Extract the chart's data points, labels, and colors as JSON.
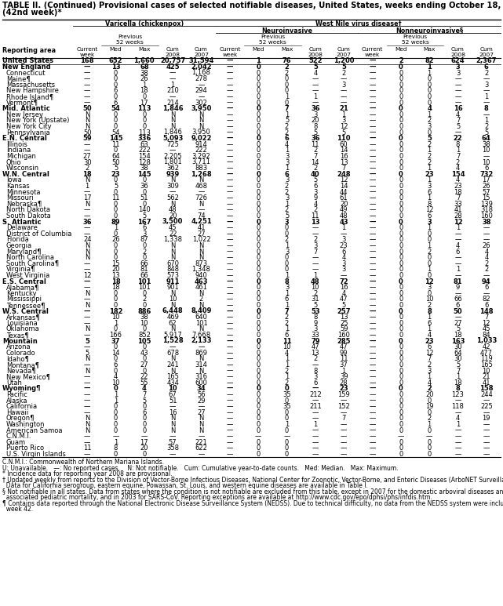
{
  "title_line1": "TABLE II. (Continued) Provisional cases of selected notifiable diseases, United States, weeks ending October 18, 2008, and October 20, 2007",
  "title_line2": "(42nd week)*",
  "col_group1": "Varicella (chickenpox)",
  "col_group2": "West Nile virus disease†",
  "col_group2a": "Neuroinvasive",
  "col_group2b": "Nonneuroinvasive§",
  "footnote1": "C.N.M.I.: Commonwealth of Northern Mariana Islands.",
  "footnote2": "U: Unavailable.   —: No reported cases.    N: Not notifiable.   Cum: Cumulative year-to-date counts.   Med: Median.   Max: Maximum.",
  "footnote3": "* Incidence data for reporting year 2008 are provisional.",
  "footnote4": "† Updated weekly from reports to the Division of Vector-Borne Infectious Diseases, National Center for Zoonotic, Vector-Borne, and Enteric Diseases (ArboNET Surveillance).",
  "footnote4b": "  Data for California serogroup, eastern equine, Powassan, St. Louis, and western equine diseases are available in Table I.",
  "footnote5": "§ Not notifiable in all states. Data from states where the condition is not notifiable are excluded from this table, except in 2007 for the domestic arboviral diseases and influenza-",
  "footnote5b": "  associated pediatric mortality, and in 2003 for SARS-CoV. Reporting exceptions are available at http://www.cdc.gov/epo/dphsi/phs/infdis.htm.",
  "footnote6": "¶ Contains data reported through the National Electronic Disease Surveillance System (NEDSS). Due to technical difficulty, no data from the NEDSS system were included in",
  "footnote6b": "  week 42.",
  "rows": [
    [
      "United States",
      "168",
      "652",
      "1,660",
      "20,757",
      "31,594",
      "—",
      "1",
      "76",
      "522",
      "1,200",
      "—",
      "2",
      "82",
      "624",
      "2,367"
    ],
    [
      "New England",
      "—",
      "13",
      "68",
      "425",
      "2,042",
      "—",
      "0",
      "2",
      "5",
      "5",
      "—",
      "0",
      "1",
      "3",
      "6"
    ],
    [
      "Connecticut",
      "—",
      "0",
      "38",
      "—",
      "1,168",
      "—",
      "0",
      "2",
      "4",
      "2",
      "—",
      "0",
      "1",
      "3",
      "2"
    ],
    [
      "Maine¶",
      "—",
      "0",
      "26",
      "—",
      "278",
      "—",
      "0",
      "0",
      "—",
      "—",
      "—",
      "0",
      "0",
      "—",
      "—"
    ],
    [
      "Massachusetts",
      "—",
      "0",
      "1",
      "1",
      "—",
      "—",
      "0",
      "0",
      "—",
      "3",
      "—",
      "0",
      "0",
      "—",
      "3"
    ],
    [
      "New Hampshire",
      "—",
      "6",
      "18",
      "210",
      "294",
      "—",
      "0",
      "0",
      "—",
      "—",
      "—",
      "0",
      "0",
      "—",
      "—"
    ],
    [
      "Rhode Island¶",
      "—",
      "0",
      "0",
      "—",
      "—",
      "—",
      "0",
      "1",
      "1",
      "—",
      "—",
      "0",
      "0",
      "—",
      "1"
    ],
    [
      "Vermont¶",
      "—",
      "6",
      "17",
      "214",
      "302",
      "—",
      "0",
      "0",
      "—",
      "—",
      "—",
      "0",
      "0",
      "—",
      "—"
    ],
    [
      "Mid. Atlantic",
      "50",
      "54",
      "113",
      "1,846",
      "3,950",
      "—",
      "0",
      "7",
      "36",
      "21",
      "—",
      "0",
      "4",
      "16",
      "8"
    ],
    [
      "New Jersey",
      "N",
      "0",
      "0",
      "N",
      "N",
      "—",
      "0",
      "1",
      "3",
      "1",
      "—",
      "0",
      "1",
      "4",
      "—"
    ],
    [
      "New York (Upstate)",
      "N",
      "0",
      "0",
      "N",
      "N",
      "—",
      "0",
      "5",
      "20",
      "3",
      "—",
      "0",
      "2",
      "7",
      "1"
    ],
    [
      "New York City",
      "N",
      "0",
      "0",
      "N",
      "N",
      "—",
      "0",
      "2",
      "8",
      "12",
      "—",
      "0",
      "3",
      "5",
      "2"
    ],
    [
      "Pennsylvania",
      "50",
      "54",
      "113",
      "1,846",
      "3,950",
      "—",
      "0",
      "2",
      "5",
      "5",
      "—",
      "0",
      "0",
      "—",
      "5"
    ],
    [
      "E.N. Central",
      "59",
      "145",
      "336",
      "5,093",
      "9,022",
      "—",
      "0",
      "6",
      "36",
      "110",
      "—",
      "0",
      "5",
      "22",
      "64"
    ],
    [
      "Illinois",
      "—",
      "11",
      "63",
      "725",
      "914",
      "—",
      "0",
      "4",
      "11",
      "60",
      "—",
      "0",
      "2",
      "8",
      "38"
    ],
    [
      "Indiana",
      "—",
      "0",
      "222",
      "—",
      "222",
      "—",
      "0",
      "1",
      "2",
      "14",
      "—",
      "0",
      "1",
      "1",
      "10"
    ],
    [
      "Michigan",
      "27",
      "64",
      "154",
      "2,205",
      "3,292",
      "—",
      "0",
      "3",
      "7",
      "16",
      "—",
      "0",
      "2",
      "7",
      "—"
    ],
    [
      "Ohio",
      "30",
      "50",
      "128",
      "1,801",
      "3,711",
      "—",
      "0",
      "3",
      "14",
      "13",
      "—",
      "0",
      "2",
      "2",
      "10"
    ],
    [
      "Wisconsin",
      "2",
      "5",
      "38",
      "362",
      "883",
      "—",
      "0",
      "1",
      "2",
      "7",
      "—",
      "0",
      "1",
      "4",
      "6"
    ],
    [
      "W.N. Central",
      "18",
      "23",
      "145",
      "939",
      "1,268",
      "—",
      "0",
      "6",
      "40",
      "248",
      "—",
      "0",
      "23",
      "154",
      "732"
    ],
    [
      "Iowa",
      "N",
      "0",
      "0",
      "N",
      "N",
      "—",
      "0",
      "3",
      "5",
      "12",
      "—",
      "0",
      "1",
      "4",
      "17"
    ],
    [
      "Kansas",
      "1",
      "5",
      "36",
      "309",
      "468",
      "—",
      "0",
      "2",
      "6",
      "14",
      "—",
      "0",
      "3",
      "23",
      "26"
    ],
    [
      "Minnesota",
      "—",
      "0",
      "0",
      "—",
      "—",
      "—",
      "0",
      "2",
      "3",
      "44",
      "—",
      "0",
      "6",
      "18",
      "57"
    ],
    [
      "Missouri",
      "17",
      "11",
      "51",
      "562",
      "726",
      "—",
      "0",
      "3",
      "9",
      "61",
      "—",
      "0",
      "1",
      "7",
      "15"
    ],
    [
      "Nebraska¶",
      "N",
      "0",
      "0",
      "N",
      "N",
      "—",
      "0",
      "1",
      "4",
      "20",
      "—",
      "0",
      "8",
      "33",
      "139"
    ],
    [
      "North Dakota",
      "—",
      "0",
      "140",
      "48",
      "—",
      "—",
      "0",
      "2",
      "2",
      "49",
      "—",
      "0",
      "12",
      "41",
      "318"
    ],
    [
      "South Dakota",
      "—",
      "0",
      "5",
      "20",
      "74",
      "—",
      "0",
      "5",
      "11",
      "48",
      "—",
      "0",
      "6",
      "28",
      "160"
    ],
    [
      "S. Atlantic",
      "36",
      "89",
      "167",
      "3,500",
      "4,251",
      "—",
      "0",
      "3",
      "13",
      "43",
      "—",
      "0",
      "3",
      "12",
      "38"
    ],
    [
      "Delaware",
      "—",
      "1",
      "6",
      "45",
      "41",
      "—",
      "0",
      "0",
      "—",
      "1",
      "—",
      "0",
      "1",
      "1",
      "—"
    ],
    [
      "District of Columbia",
      "—",
      "0",
      "3",
      "22",
      "27",
      "—",
      "0",
      "0",
      "—",
      "—",
      "—",
      "0",
      "0",
      "—",
      "—"
    ],
    [
      "Florida",
      "24",
      "26",
      "87",
      "1,338",
      "1,022",
      "—",
      "0",
      "2",
      "2",
      "3",
      "—",
      "0",
      "0",
      "—",
      "—"
    ],
    [
      "Georgia",
      "N",
      "0",
      "0",
      "N",
      "N",
      "—",
      "0",
      "1",
      "3",
      "23",
      "—",
      "0",
      "1",
      "4",
      "26"
    ],
    [
      "Maryland¶",
      "N",
      "0",
      "2",
      "N",
      "N",
      "—",
      "0",
      "3",
      "7",
      "6",
      "—",
      "0",
      "2",
      "6",
      "4"
    ],
    [
      "North Carolina",
      "N",
      "0",
      "0",
      "N",
      "N",
      "—",
      "0",
      "0",
      "—",
      "4",
      "—",
      "0",
      "0",
      "—",
      "4"
    ],
    [
      "South Carolina¶",
      "—",
      "15",
      "66",
      "670",
      "873",
      "—",
      "0",
      "0",
      "—",
      "3",
      "—",
      "0",
      "0",
      "—",
      "2"
    ],
    [
      "Virginia¶",
      "—",
      "20",
      "81",
      "848",
      "1,348",
      "—",
      "0",
      "0",
      "—",
      "3",
      "—",
      "0",
      "1",
      "1",
      "2"
    ],
    [
      "West Virginia",
      "12",
      "13",
      "66",
      "573",
      "940",
      "—",
      "0",
      "1",
      "1",
      "—",
      "—",
      "0",
      "0",
      "—",
      "—"
    ],
    [
      "E.S. Central",
      "—",
      "18",
      "101",
      "911",
      "463",
      "—",
      "0",
      "8",
      "48",
      "72",
      "—",
      "0",
      "12",
      "81",
      "94"
    ],
    [
      "Alabama¶",
      "—",
      "18",
      "101",
      "901",
      "461",
      "—",
      "0",
      "3",
      "10",
      "16",
      "—",
      "0",
      "3",
      "9",
      "6"
    ],
    [
      "Kentucky",
      "N",
      "0",
      "0",
      "N",
      "N",
      "—",
      "0",
      "1",
      "2",
      "4",
      "—",
      "0",
      "0",
      "—",
      "—"
    ],
    [
      "Mississippi",
      "—",
      "0",
      "2",
      "10",
      "2",
      "—",
      "0",
      "6",
      "31",
      "47",
      "—",
      "0",
      "10",
      "66",
      "82"
    ],
    [
      "Tennessee¶",
      "N",
      "0",
      "0",
      "N",
      "N",
      "—",
      "0",
      "1",
      "5",
      "5",
      "—",
      "0",
      "2",
      "6",
      "6"
    ],
    [
      "W.S. Central",
      "—",
      "182",
      "886",
      "6,448",
      "8,409",
      "—",
      "0",
      "7",
      "53",
      "257",
      "—",
      "0",
      "8",
      "50",
      "148"
    ],
    [
      "Arkansas¶",
      "—",
      "10",
      "38",
      "469",
      "640",
      "—",
      "0",
      "2",
      "8",
      "13",
      "—",
      "0",
      "1",
      "—",
      "7"
    ],
    [
      "Louisiana",
      "—",
      "1",
      "10",
      "62",
      "101",
      "—",
      "0",
      "2",
      "9",
      "25",
      "—",
      "0",
      "6",
      "27",
      "12"
    ],
    [
      "Oklahoma",
      "N",
      "0",
      "0",
      "N",
      "N",
      "—",
      "0",
      "1",
      "3",
      "59",
      "—",
      "0",
      "1",
      "5",
      "45"
    ],
    [
      "Texas¶",
      "—",
      "166",
      "852",
      "5,917",
      "7,668",
      "—",
      "0",
      "6",
      "33",
      "160",
      "—",
      "0",
      "4",
      "18",
      "84"
    ],
    [
      "Mountain",
      "5",
      "37",
      "105",
      "1,528",
      "2,133",
      "—",
      "0",
      "11",
      "79",
      "285",
      "—",
      "0",
      "23",
      "163",
      "1,033"
    ],
    [
      "Arizona",
      "—",
      "0",
      "0",
      "—",
      "—",
      "—",
      "0",
      "10",
      "47",
      "47",
      "—",
      "0",
      "6",
      "30",
      "42"
    ],
    [
      "Colorado",
      "5",
      "14",
      "43",
      "678",
      "869",
      "—",
      "0",
      "4",
      "13",
      "99",
      "—",
      "0",
      "12",
      "64",
      "477"
    ],
    [
      "Idaho¶",
      "N",
      "0",
      "0",
      "N",
      "N",
      "—",
      "0",
      "1",
      "2",
      "11",
      "—",
      "0",
      "7",
      "30",
      "119"
    ],
    [
      "Montana¶",
      "—",
      "6",
      "27",
      "241",
      "314",
      "—",
      "0",
      "1",
      "—",
      "37",
      "—",
      "0",
      "2",
      "5",
      "165"
    ],
    [
      "Nevada¶",
      "N",
      "0",
      "0",
      "N",
      "N",
      "—",
      "0",
      "2",
      "8",
      "1",
      "—",
      "0",
      "3",
      "7",
      "10"
    ],
    [
      "New Mexico¶",
      "—",
      "4",
      "22",
      "165",
      "316",
      "—",
      "0",
      "1",
      "3",
      "39",
      "—",
      "0",
      "1",
      "1",
      "21"
    ],
    [
      "Utah",
      "—",
      "10",
      "55",
      "434",
      "600",
      "—",
      "0",
      "2",
      "6",
      "28",
      "—",
      "0",
      "4",
      "18",
      "41"
    ],
    [
      "Wyoming¶",
      "—",
      "0",
      "4",
      "10",
      "34",
      "—",
      "0",
      "0",
      "—",
      "23",
      "—",
      "0",
      "2",
      "8",
      "158"
    ],
    [
      "Pacific",
      "—",
      "1",
      "7",
      "67",
      "56",
      "—",
      "0",
      "35",
      "212",
      "159",
      "—",
      "0",
      "20",
      "123",
      "244"
    ],
    [
      "Alaska",
      "—",
      "1",
      "5",
      "51",
      "29",
      "—",
      "0",
      "0",
      "—",
      "—",
      "—",
      "0",
      "0",
      "—",
      "—"
    ],
    [
      "California",
      "—",
      "0",
      "0",
      "—",
      "—",
      "—",
      "0",
      "35",
      "211",
      "152",
      "—",
      "0",
      "19",
      "118",
      "225"
    ],
    [
      "Hawaii",
      "—",
      "0",
      "6",
      "16",
      "27",
      "—",
      "0",
      "0",
      "—",
      "—",
      "—",
      "0",
      "0",
      "—",
      "—"
    ],
    [
      "Oregon¶",
      "N",
      "0",
      "0",
      "N",
      "N",
      "—",
      "0",
      "0",
      "—",
      "7",
      "—",
      "0",
      "2",
      "4",
      "19"
    ],
    [
      "Washington",
      "N",
      "0",
      "0",
      "N",
      "N",
      "—",
      "0",
      "1",
      "1",
      "—",
      "—",
      "0",
      "1",
      "1",
      "—"
    ],
    [
      "American Samoa",
      "N",
      "0",
      "0",
      "N",
      "N",
      "—",
      "0",
      "0",
      "—",
      "—",
      "—",
      "0",
      "0",
      "—",
      "—"
    ],
    [
      "C.N.M.I.",
      "—",
      "—",
      "—",
      "—",
      "—",
      "—",
      "—",
      "—",
      "—",
      "—",
      "—",
      "—",
      "—",
      "—",
      "—"
    ],
    [
      "Guam",
      "—",
      "1",
      "17",
      "57",
      "221",
      "—",
      "0",
      "0",
      "—",
      "—",
      "—",
      "0",
      "0",
      "—",
      "—"
    ],
    [
      "Puerto Rico",
      "11",
      "8",
      "20",
      "358",
      "622",
      "—",
      "0",
      "0",
      "—",
      "—",
      "—",
      "0",
      "0",
      "—",
      "—"
    ],
    [
      "U.S. Virgin Islands",
      "—",
      "0",
      "0",
      "—",
      "—",
      "—",
      "0",
      "0",
      "—",
      "—",
      "—",
      "0",
      "0",
      "—",
      "—"
    ]
  ],
  "bold_rows": [
    0,
    1,
    8,
    13,
    19,
    27,
    37,
    42,
    47,
    55
  ],
  "section_rows": [
    1,
    8,
    13,
    19,
    27,
    37,
    42,
    47,
    55
  ]
}
